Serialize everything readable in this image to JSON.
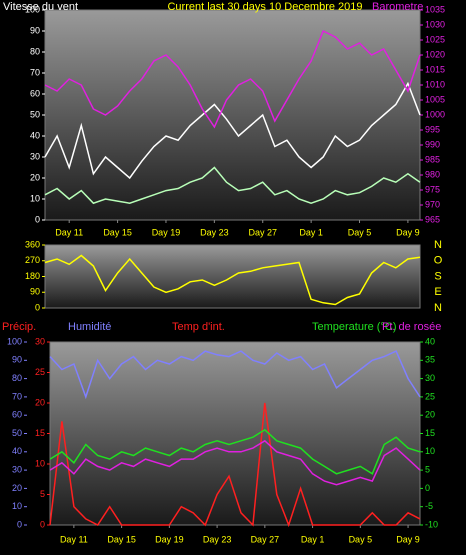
{
  "chart_data": [
    {
      "type": "line",
      "title": "Current last 30 days 10 Decembre 2019",
      "ylabel": "Vitesse du vent",
      "y2label": "Barometre",
      "x": [
        0,
        1,
        2,
        3,
        4,
        5,
        6,
        7,
        8,
        9,
        10,
        11,
        12,
        13,
        14,
        15,
        16,
        17,
        18,
        19,
        20,
        21,
        22,
        23,
        24,
        25,
        26,
        27,
        28,
        29,
        30,
        31
      ],
      "xlim": [
        0,
        31
      ],
      "xticks": [
        {
          "value": 2,
          "label": "Day 11"
        },
        {
          "value": 6,
          "label": "Day 15"
        },
        {
          "value": 10,
          "label": "Day 19"
        },
        {
          "value": 14,
          "label": "Day 23"
        },
        {
          "value": 18,
          "label": "Day 27"
        },
        {
          "value": 22,
          "label": "Day 1"
        },
        {
          "value": 26,
          "label": "Day 5"
        },
        {
          "value": 30,
          "label": "Day 9"
        }
      ],
      "ylim": [
        0,
        100
      ],
      "yticks": [
        0,
        10,
        20,
        30,
        40,
        50,
        60,
        70,
        80,
        90,
        100
      ],
      "y2lim": [
        965,
        1035
      ],
      "y2ticks": [
        965,
        970,
        975,
        980,
        985,
        990,
        995,
        1000,
        1005,
        1010,
        1015,
        1020,
        1025,
        1030,
        1035
      ],
      "axis_colors": {
        "y": "#ffffff",
        "y2": "#e020e0"
      },
      "series": [
        {
          "color": "#ffffff",
          "values": [
            30,
            40,
            25,
            45,
            22,
            30,
            25,
            20,
            28,
            35,
            40,
            38,
            45,
            50,
            55,
            48,
            40,
            45,
            50,
            35,
            38,
            30,
            25,
            30,
            40,
            35,
            38,
            45,
            50,
            55,
            65,
            50
          ]
        },
        {
          "color": "#b8ffb8",
          "values": [
            12,
            15,
            10,
            14,
            8,
            10,
            9,
            8,
            10,
            12,
            14,
            15,
            18,
            20,
            25,
            18,
            14,
            15,
            18,
            12,
            14,
            10,
            8,
            10,
            14,
            12,
            13,
            16,
            20,
            18,
            22,
            18
          ]
        },
        {
          "color": "#e020e0",
          "axis": "y2",
          "values": [
            1010,
            1008,
            1012,
            1010,
            1002,
            1000,
            1003,
            1008,
            1012,
            1018,
            1020,
            1016,
            1010,
            1002,
            996,
            1005,
            1010,
            1012,
            1008,
            998,
            1005,
            1012,
            1018,
            1028,
            1026,
            1022,
            1024,
            1020,
            1022,
            1015,
            1008,
            1020
          ]
        }
      ]
    },
    {
      "type": "line",
      "x": [
        0,
        1,
        2,
        3,
        4,
        5,
        6,
        7,
        8,
        9,
        10,
        11,
        12,
        13,
        14,
        15,
        16,
        17,
        18,
        19,
        20,
        21,
        22,
        23,
        24,
        25,
        26,
        27,
        28,
        29,
        30,
        31
      ],
      "xlim": [
        0,
        31
      ],
      "ylim": [
        0,
        360
      ],
      "yticks": [
        0,
        90,
        180,
        270,
        360
      ],
      "direction_labels": [
        "N",
        "E",
        "S",
        "O",
        "N"
      ],
      "axis_colors": {
        "y": "#ffff00"
      },
      "series": [
        {
          "color": "#ffff00",
          "values": [
            260,
            280,
            250,
            300,
            240,
            100,
            200,
            280,
            200,
            120,
            90,
            110,
            150,
            160,
            130,
            160,
            200,
            210,
            230,
            240,
            250,
            260,
            50,
            30,
            20,
            60,
            80,
            200,
            260,
            230,
            280,
            290
          ]
        }
      ]
    },
    {
      "type": "line",
      "annotation": "Temp d'int.",
      "x": [
        0,
        1,
        2,
        3,
        4,
        5,
        6,
        7,
        8,
        9,
        10,
        11,
        12,
        13,
        14,
        15,
        16,
        17,
        18,
        19,
        20,
        21,
        22,
        23,
        24,
        25,
        26,
        27,
        28,
        29,
        30,
        31
      ],
      "xlim": [
        0,
        31
      ],
      "xticks": [
        {
          "value": 2,
          "label": "Day 11"
        },
        {
          "value": 6,
          "label": "Day 15"
        },
        {
          "value": 10,
          "label": "Day 19"
        },
        {
          "value": 14,
          "label": "Day 23"
        },
        {
          "value": 18,
          "label": "Day 27"
        },
        {
          "value": 22,
          "label": "Day 1"
        },
        {
          "value": 26,
          "label": "Day 5"
        },
        {
          "value": 30,
          "label": "Day 9"
        }
      ],
      "ylim": [
        0,
        100
      ],
      "yticks": [
        0,
        10,
        20,
        30,
        40,
        50,
        60,
        70,
        80,
        90,
        100
      ],
      "y2lim": [
        0,
        30
      ],
      "y2ticks": [
        0,
        5,
        10,
        15,
        20,
        25,
        30
      ],
      "y3lim": [
        -10,
        40
      ],
      "y3ticks": [
        -10,
        -5,
        0,
        5,
        10,
        15,
        20,
        25,
        30,
        35,
        40
      ],
      "axis_colors": {
        "y": "#8080ff",
        "y2": "#ff2020",
        "y3": "#20e020"
      },
      "series": [
        {
          "name": "Précip.",
          "color": "#ff2020",
          "axis": "y2",
          "values": [
            0,
            17,
            3,
            1,
            0,
            3,
            0,
            0,
            0,
            0,
            0,
            3,
            2,
            0,
            5,
            8,
            2,
            0,
            20,
            5,
            0,
            6,
            0,
            0,
            0,
            0,
            0,
            2,
            0,
            0,
            2,
            1
          ]
        },
        {
          "name": "Humidité",
          "color": "#8080ff",
          "values": [
            92,
            85,
            88,
            70,
            90,
            80,
            88,
            92,
            85,
            90,
            88,
            92,
            90,
            95,
            93,
            92,
            95,
            90,
            88,
            94,
            90,
            92,
            85,
            88,
            75,
            80,
            85,
            90,
            92,
            95,
            80,
            70
          ]
        },
        {
          "name": "Temperature (°C)",
          "color": "#20e020",
          "axis": "y3",
          "values": [
            8,
            10,
            7,
            12,
            9,
            8,
            10,
            9,
            11,
            10,
            9,
            11,
            10,
            12,
            13,
            12,
            13,
            14,
            16,
            13,
            12,
            11,
            8,
            6,
            4,
            5,
            6,
            4,
            12,
            14,
            11,
            10
          ]
        },
        {
          "name": "Pt. de rosée",
          "color": "#e020e0",
          "axis": "y3",
          "values": [
            5,
            7,
            4,
            8,
            6,
            5,
            7,
            6,
            8,
            7,
            6,
            8,
            8,
            10,
            11,
            10,
            10,
            11,
            13,
            10,
            9,
            8,
            4,
            2,
            1,
            2,
            3,
            2,
            9,
            11,
            8,
            5
          ]
        }
      ]
    }
  ]
}
